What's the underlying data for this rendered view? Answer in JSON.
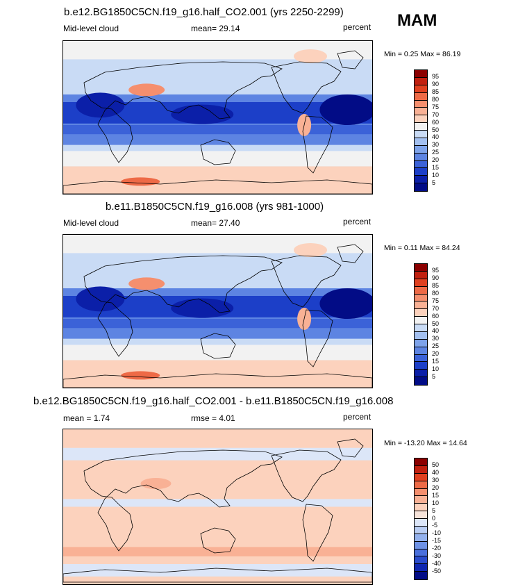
{
  "season": "MAM",
  "panels": [
    {
      "title": "b.e12.BG1850C5CN.f19_g16.half_CO2.001 (yrs 2250-2299)",
      "left_label": "Mid-level cloud",
      "center_label": "mean=  29.14",
      "right_label": "percent",
      "minmax": "Min =   0.25 Max =  86.19",
      "colorbar_ticks": [
        "95",
        "90",
        "85",
        "80",
        "75",
        "70",
        "60",
        "50",
        "40",
        "30",
        "25",
        "20",
        "15",
        "10",
        "5"
      ],
      "colorbar_colors": [
        "#8b0000",
        "#c1200f",
        "#e0401f",
        "#ee6a46",
        "#f58f6e",
        "#f9b195",
        "#fcd2bd",
        "#f2f2f2",
        "#c9dbf5",
        "#a3c0f0",
        "#7ea3ea",
        "#5d84e2",
        "#3b62d8",
        "#1c3fc8",
        "#0b1fa8",
        "#020c86"
      ],
      "map_style": "full"
    },
    {
      "title": "b.e11.B1850C5CN.f19_g16.008 (yrs 981-1000)",
      "left_label": "Mid-level cloud",
      "center_label": "mean=  27.40",
      "right_label": "percent",
      "minmax": "Min =   0.11 Max =  84.24",
      "colorbar_ticks": [
        "95",
        "90",
        "85",
        "80",
        "75",
        "70",
        "60",
        "50",
        "40",
        "30",
        "25",
        "20",
        "15",
        "10",
        "5"
      ],
      "colorbar_colors": [
        "#8b0000",
        "#c1200f",
        "#e0401f",
        "#ee6a46",
        "#f58f6e",
        "#f9b195",
        "#fcd2bd",
        "#f2f2f2",
        "#c9dbf5",
        "#a3c0f0",
        "#7ea3ea",
        "#5d84e2",
        "#3b62d8",
        "#1c3fc8",
        "#0b1fa8",
        "#020c86"
      ],
      "map_style": "full"
    },
    {
      "title": "b.e12.BG1850C5CN.f19_g16.half_CO2.001 - b.e11.B1850C5CN.f19_g16.008",
      "left_label": "mean =   1.74",
      "center_label": "rmse =   4.01",
      "right_label": "percent",
      "minmax": "Min = -13.20 Max =  14.64",
      "colorbar_ticks": [
        "50",
        "40",
        "30",
        "20",
        "15",
        "10",
        "5",
        "0",
        "-5",
        "-10",
        "-15",
        "-20",
        "-30",
        "-40",
        "-50"
      ],
      "colorbar_colors": [
        "#8b0000",
        "#c1200f",
        "#e0401f",
        "#ee6a46",
        "#f58f6e",
        "#f9b195",
        "#fcd2bd",
        "#f7e4da",
        "#dce6f8",
        "#b9cdf3",
        "#93b1ed",
        "#6e92e6",
        "#4a70dd",
        "#2a4ccd",
        "#0f27b0",
        "#020c86"
      ],
      "map_style": "diff"
    }
  ]
}
